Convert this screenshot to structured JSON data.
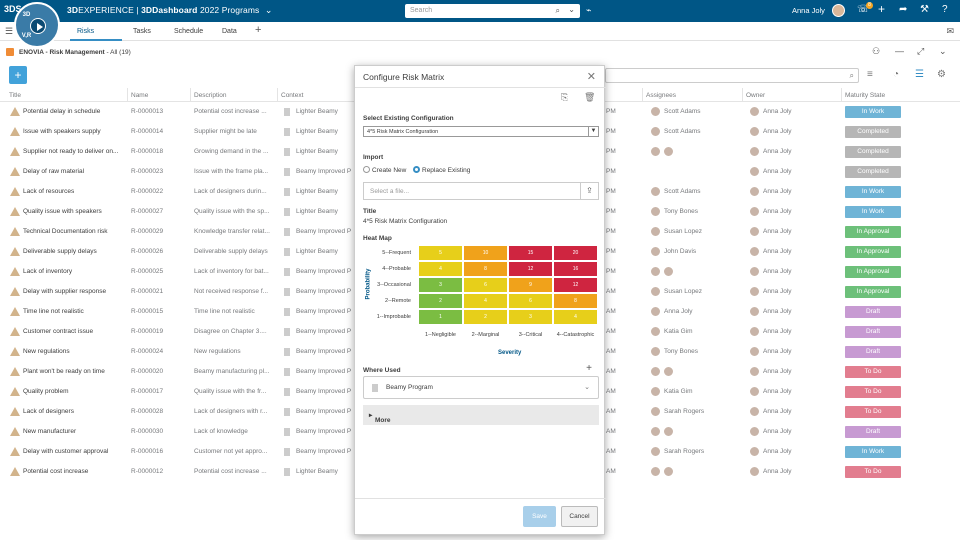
{
  "topbar": {
    "logo": "3DS",
    "compass": {
      "q1": "3D",
      "q2": "",
      "q3": "V,R",
      "q4": ""
    },
    "brand_bold": "3D",
    "brand_rest": "EXPERIENCE | ",
    "brand_app": "3DDashboard",
    "brand_dash": " 2022 Programs",
    "dropdown": "⌄",
    "search_placeholder": "Search",
    "user_name": "Anna Joly",
    "notif_count": "8",
    "icons": [
      "tag-icon",
      "notification-icon",
      "add-icon",
      "share-icon",
      "tools-icon",
      "help-icon"
    ]
  },
  "tabs": {
    "items": [
      {
        "label": "Risks",
        "active": true
      },
      {
        "label": "Tasks"
      },
      {
        "label": "Schedule"
      },
      {
        "label": "Data"
      }
    ],
    "add": "+"
  },
  "subbar": {
    "title_bold": "ENOVIA - Risk Management",
    "title_rest": " - All (19)"
  },
  "toolbar": {
    "add": "+"
  },
  "columns": [
    "Title",
    "Name",
    "Description",
    "Context",
    "Assignees",
    "Owner",
    "Maturity State"
  ],
  "rows": [
    {
      "title": "Potential delay in schedule",
      "name": "R-0000013",
      "desc": "Potential cost increase ...",
      "ctx": "Lighter Beamy",
      "time": "PM",
      "assignees": [
        "Scott Adams"
      ],
      "owner": "Anna Joly",
      "state": "In Work"
    },
    {
      "title": "Issue with speakers supply",
      "name": "R-0000014",
      "desc": "Supplier might be late",
      "ctx": "Lighter Beamy",
      "time": "PM",
      "assignees": [
        "Scott Adams"
      ],
      "owner": "Anna Joly",
      "state": "Completed"
    },
    {
      "title": "Supplier not ready to deliver on...",
      "name": "R-0000018",
      "desc": "Growing demand in the ...",
      "ctx": "Lighter Beamy",
      "time": "PM",
      "assignees": [
        "",
        ""
      ],
      "owner": "Anna Joly",
      "state": "Completed"
    },
    {
      "title": "Delay of raw material",
      "name": "R-0000023",
      "desc": "Issue with the frame pla...",
      "ctx": "Beamy Improved P",
      "time": "PM",
      "assignees": [],
      "owner": "Anna Joly",
      "state": "Completed"
    },
    {
      "title": "Lack of resources",
      "name": "R-0000022",
      "desc": "Lack of designers durin...",
      "ctx": "Lighter Beamy",
      "time": "PM",
      "assignees": [
        "Scott Adams"
      ],
      "owner": "Anna Joly",
      "state": "In Work"
    },
    {
      "title": "Quality issue with speakers",
      "name": "R-0000027",
      "desc": "Quality issue with the sp...",
      "ctx": "Lighter Beamy",
      "time": "PM",
      "assignees": [
        "Tony Bones"
      ],
      "owner": "Anna Joly",
      "state": "In Work"
    },
    {
      "title": "Technical Documentation risk",
      "name": "R-0000029",
      "desc": "Knowledge transfer relat...",
      "ctx": "Beamy Improved P",
      "time": "PM",
      "assignees": [
        "Susan Lopez"
      ],
      "owner": "Anna Joly",
      "state": "In Approval"
    },
    {
      "title": "Deliverable supply delays",
      "name": "R-0000026",
      "desc": "Deliverable supply delays",
      "ctx": "Lighter Beamy",
      "time": "PM",
      "assignees": [
        "John Davis"
      ],
      "owner": "Anna Joly",
      "state": "In Approval"
    },
    {
      "title": "Lack of inventory",
      "name": "R-0000025",
      "desc": "Lack of inventory for bat...",
      "ctx": "Beamy Improved P",
      "time": "PM",
      "assignees": [
        "",
        ""
      ],
      "owner": "Anna Joly",
      "state": "In Approval"
    },
    {
      "title": "Delay with supplier response",
      "name": "R-0000021",
      "desc": "Not received response f...",
      "ctx": "Beamy Improved P",
      "time": "AM",
      "assignees": [
        "Susan Lopez"
      ],
      "owner": "Anna Joly",
      "state": "In Approval"
    },
    {
      "title": "Time line not realistic",
      "name": "R-0000015",
      "desc": "Time line not realistic",
      "ctx": "Beamy Improved P",
      "time": "AM",
      "assignees": [
        "Anna Joly"
      ],
      "owner": "Anna Joly",
      "state": "Draft"
    },
    {
      "title": "Customer contract issue",
      "name": "R-0000019",
      "desc": "Disagree on Chapter 3....",
      "ctx": "Beamy Improved P",
      "time": "AM",
      "assignees": [
        "Katia Gim"
      ],
      "owner": "Anna Joly",
      "state": "Draft"
    },
    {
      "title": "New regulations",
      "name": "R-0000024",
      "desc": "New regulations",
      "ctx": "Beamy Improved P",
      "time": "AM",
      "assignees": [
        "Tony Bones"
      ],
      "owner": "Anna Joly",
      "state": "Draft"
    },
    {
      "title": "Plant won't be ready on time",
      "name": "R-0000020",
      "desc": "Beamy manufacturing pl...",
      "ctx": "Beamy Improved P",
      "time": "AM",
      "assignees": [
        "",
        ""
      ],
      "owner": "Anna Joly",
      "state": "To Do"
    },
    {
      "title": "Quality problem",
      "name": "R-0000017",
      "desc": "Quality issue with the fr...",
      "ctx": "Beamy Improved P",
      "time": "AM",
      "assignees": [
        "Katia Gim"
      ],
      "owner": "Anna Joly",
      "state": "To Do"
    },
    {
      "title": "Lack of designers",
      "name": "R-0000028",
      "desc": "Lack of designers with r...",
      "ctx": "Beamy Improved P",
      "time": "AM",
      "assignees": [
        "Sarah Rogers"
      ],
      "owner": "Anna Joly",
      "state": "To Do"
    },
    {
      "title": "New manufacturer",
      "name": "R-0000030",
      "desc": "Lack of knowledge",
      "ctx": "Beamy Improved P",
      "time": "AM",
      "assignees": [
        "",
        ""
      ],
      "owner": "Anna Joly",
      "state": "Draft"
    },
    {
      "title": "Delay with customer approval",
      "name": "R-0000016",
      "desc": "Customer not yet appro...",
      "ctx": "Beamy Improved P",
      "time": "AM",
      "assignees": [
        "Sarah Rogers"
      ],
      "owner": "Anna Joly",
      "state": "In Work"
    },
    {
      "title": "Potential cost increase",
      "name": "R-0000012",
      "desc": "Potential cost increase ...",
      "ctx": "Lighter Beamy",
      "time": "AM",
      "assignees": [
        "",
        ""
      ],
      "owner": "Anna Joly",
      "state": "To Do"
    }
  ],
  "state_colors": {
    "In Work": "#6fb4d6",
    "Completed": "#b6b6b6",
    "In Approval": "#6dc07a",
    "Draft": "#c79ad2",
    "To Do": "#e27d8f"
  },
  "modal": {
    "title": "Configure Risk Matrix",
    "close": "✕",
    "select_label": "Select Existing Configuration",
    "select_value": "4*5 Risk Matrix Configuration",
    "import_label": "Import",
    "opt_create": "Create New",
    "opt_replace": "Replace Existing",
    "file_placeholder": "Select a file...",
    "title_label": "Title",
    "title_value": "4*5 Risk Matrix Configuration",
    "heatmap_label": "Heat Map",
    "prob_axis": "Probability",
    "sev_axis": "Severity",
    "prob_levels": [
      "5--Frequent",
      "4--Probable",
      "3--Occasional",
      "2--Remote",
      "1--Improbable"
    ],
    "sev_levels": [
      "1--Negligible",
      "2--Marginal",
      "3--Critical",
      "4--Catastrophic"
    ],
    "values": [
      [
        5,
        10,
        15,
        20
      ],
      [
        4,
        8,
        12,
        16
      ],
      [
        3,
        6,
        9,
        12
      ],
      [
        2,
        4,
        6,
        8
      ],
      [
        1,
        2,
        3,
        4
      ]
    ],
    "cell_colors": [
      [
        "#e7cf1a",
        "#f0a21b",
        "#cf2540",
        "#cf2540"
      ],
      [
        "#e7cf1a",
        "#f0a21b",
        "#cf2540",
        "#cf2540"
      ],
      [
        "#7bbd42",
        "#e7cf1a",
        "#f0a21b",
        "#cf2540"
      ],
      [
        "#7bbd42",
        "#e7cf1a",
        "#e7cf1a",
        "#f0a21b"
      ],
      [
        "#7bbd42",
        "#e7cf1a",
        "#e7cf1a",
        "#e7cf1a"
      ]
    ],
    "where_used_label": "Where Used",
    "where_used_item": "Beamy Program",
    "more_label": "More",
    "save": "Save",
    "cancel": "Cancel"
  }
}
